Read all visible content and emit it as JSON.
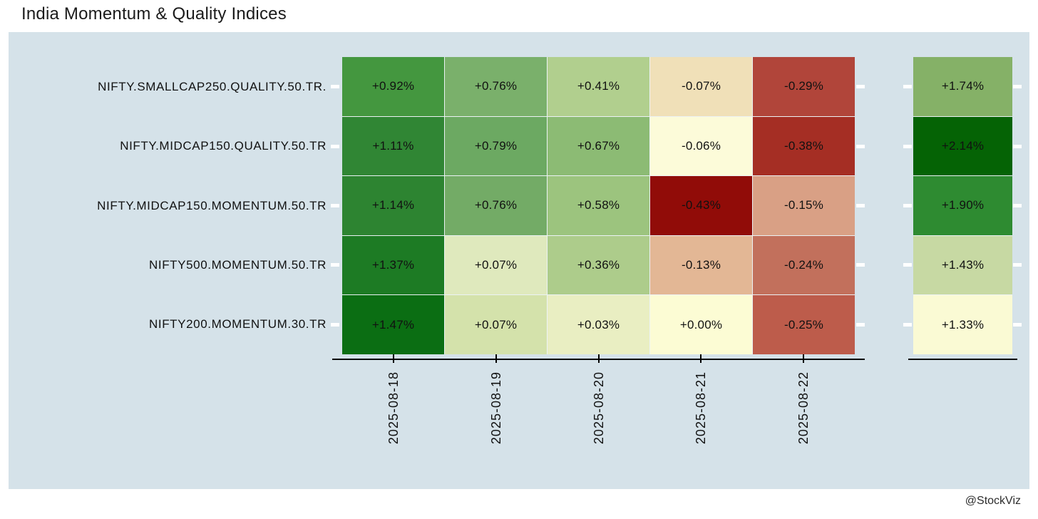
{
  "title": "India Momentum & Quality Indices",
  "watermark": "@StockViz",
  "theme": {
    "page_bg": "#ffffff",
    "plot_bg": "#d5e2e9",
    "axis_color": "#000000",
    "row_tick_dash_color": "#ffffff",
    "text_color": "#111111",
    "colormap": "RdYlGn"
  },
  "chart_data": {
    "type": "heatmap",
    "title": "India Momentum & Quality Indices",
    "legend": "none",
    "rows": [
      "NIFTY.SMALLCAP250.QUALITY.50.TR.",
      "NIFTY.MIDCAP150.QUALITY.50.TR",
      "NIFTY.MIDCAP150.MOMENTUM.50.TR",
      "NIFTY500.MOMENTUM.50.TR",
      "NIFTY200.MOMENTUM.30.TR"
    ],
    "columns": [
      "2025-08-18",
      "2025-08-19",
      "2025-08-20",
      "2025-08-21",
      "2025-08-22"
    ],
    "values": [
      [
        "+0.92%",
        "+0.76%",
        "+0.41%",
        "-0.07%",
        "-0.29%"
      ],
      [
        "+1.11%",
        "+0.79%",
        "+0.67%",
        "-0.06%",
        "-0.38%"
      ],
      [
        "+1.14%",
        "+0.76%",
        "+0.58%",
        "-0.43%",
        "-0.15%"
      ],
      [
        "+1.37%",
        "+0.07%",
        "+0.36%",
        "-0.13%",
        "-0.24%"
      ],
      [
        "+1.47%",
        "+0.07%",
        "+0.03%",
        "+0.00%",
        "-0.25%"
      ]
    ],
    "values_numeric": [
      [
        0.92,
        0.76,
        0.41,
        -0.07,
        -0.29
      ],
      [
        1.11,
        0.79,
        0.67,
        -0.06,
        -0.38
      ],
      [
        1.14,
        0.76,
        0.58,
        -0.43,
        -0.15
      ],
      [
        1.37,
        0.07,
        0.36,
        -0.13,
        -0.24
      ],
      [
        1.47,
        0.07,
        0.03,
        0.0,
        -0.25
      ]
    ],
    "cell_colors": [
      [
        "#44973f",
        "#7ab06b",
        "#b1cf8e",
        "#f0e0b8",
        "#b1453a"
      ],
      [
        "#308634",
        "#6ca962",
        "#8cbb74",
        "#fcfbd9",
        "#a52e24"
      ],
      [
        "#2d8431",
        "#73ab66",
        "#9cc47e",
        "#910c08",
        "#d9a085"
      ],
      [
        "#1d7b24",
        "#dfe9bd",
        "#adcc8b",
        "#e3b795",
        "#c2705c"
      ],
      [
        "#0b6e13",
        "#d4e2ab",
        "#e9eec2",
        "#fcfcd4",
        "#bd5c4b"
      ]
    ],
    "totals": {
      "values": [
        "+1.74%",
        "+2.14%",
        "+1.90%",
        "+1.43%",
        "+1.33%"
      ],
      "values_numeric": [
        1.74,
        2.14,
        1.9,
        1.43,
        1.33
      ],
      "colors": [
        "#85b167",
        "#056305",
        "#2e8b31",
        "#c7d9a3",
        "#fafad4"
      ]
    }
  }
}
